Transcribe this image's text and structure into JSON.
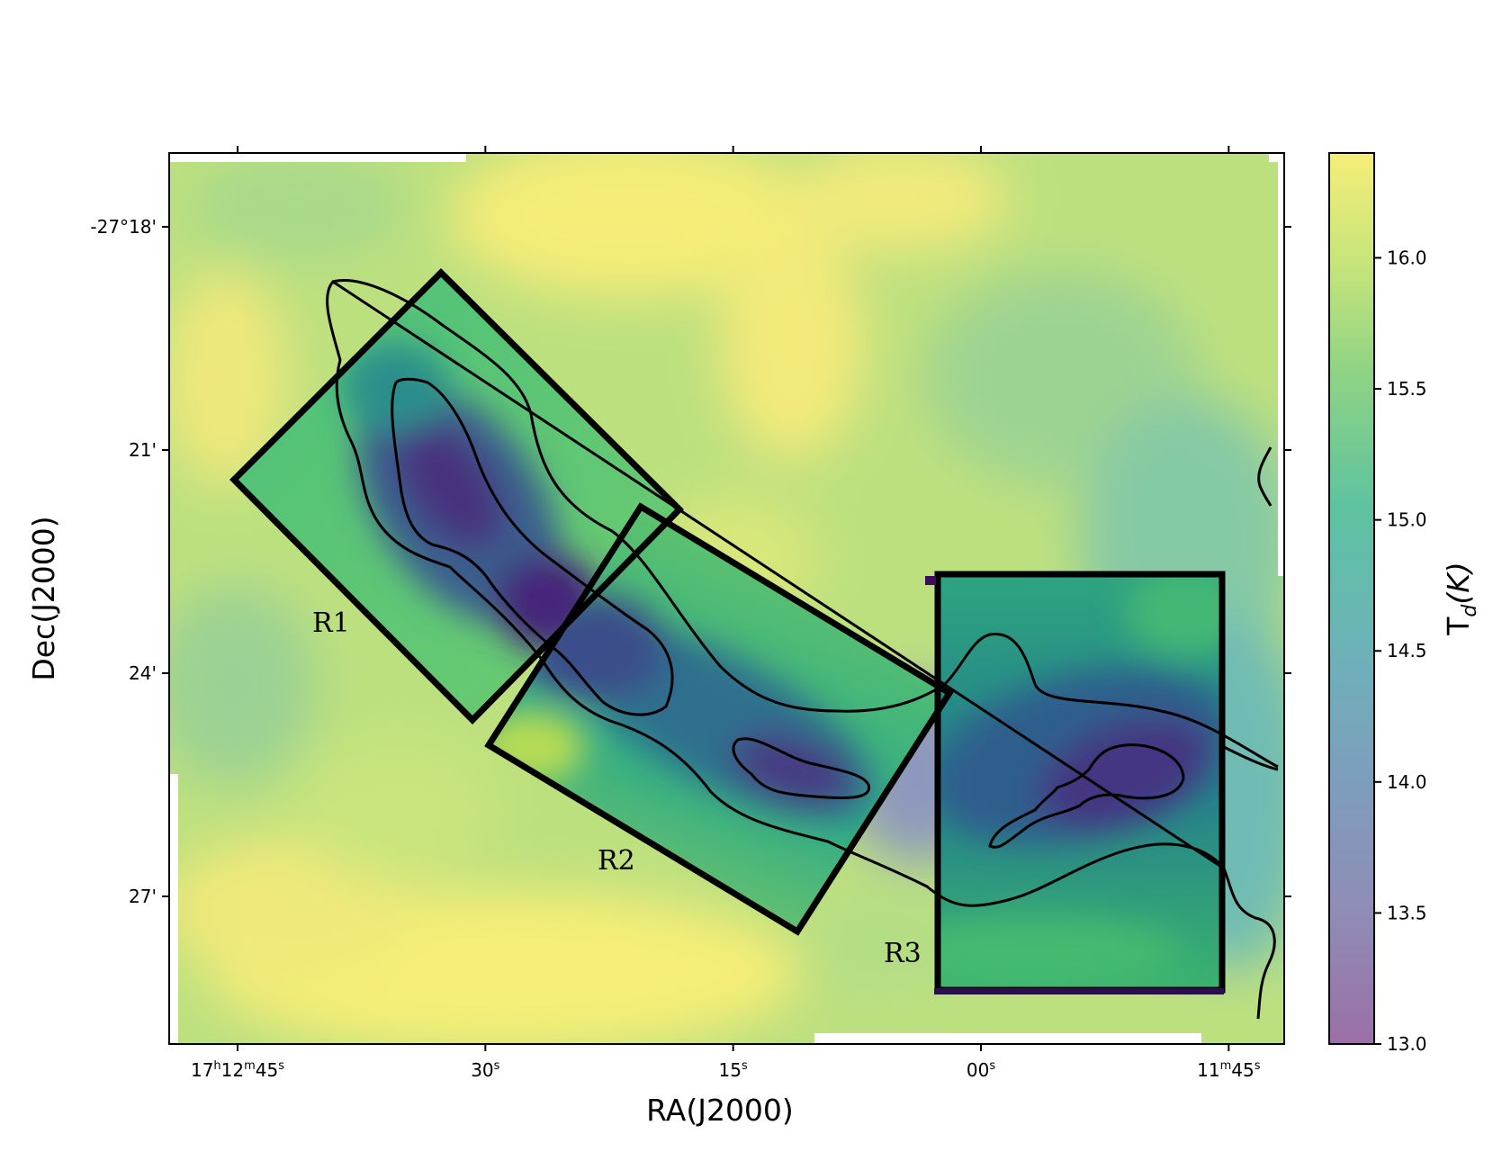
{
  "chart_data": {
    "type": "heatmap",
    "title": "",
    "xlabel": "RA(J2000)",
    "ylabel": "Dec(J2000)",
    "colorbar": {
      "label_base": "T",
      "label_sub": "d",
      "label_unit": "(K)",
      "colormap": "viridis",
      "range": [
        13.0,
        16.4
      ],
      "ticks": [
        "13.0",
        "13.5",
        "14.0",
        "14.5",
        "15.0",
        "15.5",
        "16.0"
      ],
      "tick_values": [
        13.0,
        13.5,
        14.0,
        14.5,
        15.0,
        15.5,
        16.0
      ]
    },
    "x_ticks": [
      {
        "parts": [
          [
            "17",
            "n"
          ],
          [
            "h",
            "s"
          ],
          [
            "12",
            "n"
          ],
          [
            "m",
            "s"
          ],
          [
            "45",
            "n"
          ],
          [
            "s",
            "s"
          ]
        ],
        "ra_seconds": 45,
        "ra_minutes": 12
      },
      {
        "parts": [
          [
            "30",
            "n"
          ],
          [
            "s",
            "s"
          ]
        ],
        "ra_seconds": 30,
        "ra_minutes": 12
      },
      {
        "parts": [
          [
            "15",
            "n"
          ],
          [
            "s",
            "s"
          ]
        ],
        "ra_seconds": 15,
        "ra_minutes": 12
      },
      {
        "parts": [
          [
            "00",
            "n"
          ],
          [
            "s",
            "s"
          ]
        ],
        "ra_seconds": 0,
        "ra_minutes": 12
      },
      {
        "parts": [
          [
            "11",
            "n"
          ],
          [
            "m",
            "s"
          ],
          [
            "45",
            "n"
          ],
          [
            "s",
            "s"
          ]
        ],
        "ra_seconds": 45,
        "ra_minutes": 11
      }
    ],
    "y_ticks": [
      {
        "label": "-27°18'",
        "dec_arcmin": 18
      },
      {
        "label": "21'",
        "dec_arcmin": 21
      },
      {
        "label": "24'",
        "dec_arcmin": 24
      },
      {
        "label": "27'",
        "dec_arcmin": 27
      }
    ],
    "regions": [
      {
        "label": "R1",
        "shape": "rotated-rectangle"
      },
      {
        "label": "R2",
        "shape": "rotated-rectangle"
      },
      {
        "label": "R3",
        "shape": "rectangle"
      }
    ],
    "contours": "black column-density contours tracing the filament",
    "grid": false
  }
}
